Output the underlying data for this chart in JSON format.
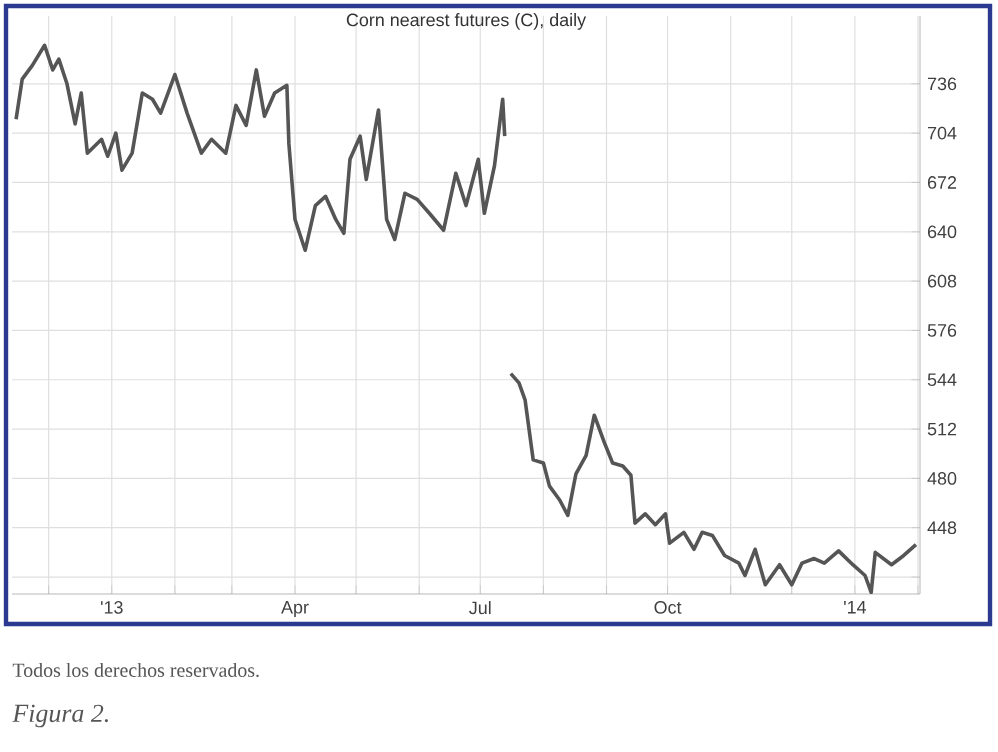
{
  "chart_data": {
    "type": "line",
    "title": "Corn nearest futures (C), daily",
    "x": [
      "2012-11-15",
      "2012-11-18",
      "2012-11-23",
      "2012-11-29",
      "2012-12-03",
      "2012-12-06",
      "2012-12-10",
      "2012-12-14",
      "2012-12-17",
      "2012-12-20",
      "2012-12-27",
      "2012-12-30",
      "2013-01-03",
      "2013-01-06",
      "2013-01-11",
      "2013-01-16",
      "2013-01-21",
      "2013-01-25",
      "2013-02-01",
      "2013-02-07",
      "2013-02-14",
      "2013-02-19",
      "2013-02-26",
      "2013-03-03",
      "2013-03-08",
      "2013-03-13",
      "2013-03-17",
      "2013-03-22",
      "2013-03-28",
      "2013-03-29",
      "2013-04-01",
      "2013-04-06",
      "2013-04-11",
      "2013-04-16",
      "2013-04-21",
      "2013-04-25",
      "2013-04-28",
      "2013-05-03",
      "2013-05-06",
      "2013-05-12",
      "2013-05-16",
      "2013-05-20",
      "2013-05-25",
      "2013-05-31",
      "2013-06-06",
      "2013-06-13",
      "2013-06-19",
      "2013-06-24",
      "2013-06-30",
      "2013-07-03",
      "2013-07-08",
      "2013-07-12",
      "2013-07-13",
      "2013-07-14",
      "2013-07-16",
      "2013-07-20",
      "2013-07-23",
      "2013-07-27",
      "2013-08-01",
      "2013-08-04",
      "2013-08-09",
      "2013-08-13",
      "2013-08-17",
      "2013-08-22",
      "2013-08-26",
      "2013-08-31",
      "2013-09-04",
      "2013-09-09",
      "2013-09-13",
      "2013-09-15",
      "2013-09-20",
      "2013-09-25",
      "2013-09-30",
      "2013-10-02",
      "2013-10-09",
      "2013-10-14",
      "2013-10-18",
      "2013-10-23",
      "2013-10-29",
      "2013-11-05",
      "2013-11-08",
      "2013-11-13",
      "2013-11-18",
      "2013-11-25",
      "2013-12-01",
      "2013-12-06",
      "2013-12-12",
      "2013-12-17",
      "2013-12-24",
      "2013-12-31",
      "2014-01-06",
      "2014-01-09",
      "2014-01-11",
      "2014-01-19",
      "2014-01-25",
      "2014-01-31"
    ],
    "series": [
      {
        "color": "#555555",
        "values": [
          713,
          739,
          748,
          761,
          745,
          752,
          736,
          710,
          730,
          691,
          700,
          689,
          704,
          680,
          691,
          730,
          726,
          717,
          742,
          717,
          691,
          700,
          691,
          722,
          709,
          745,
          715,
          730,
          735,
          697,
          648,
          628,
          657,
          663,
          648,
          639,
          687,
          702,
          674,
          719,
          648,
          635,
          665,
          661,
          652,
          641,
          678,
          657,
          687,
          652,
          683,
          726,
          702,
          null,
          548,
          542,
          531,
          492,
          490,
          475,
          466,
          456,
          483,
          495,
          521,
          503,
          490,
          488,
          482,
          451,
          457,
          450,
          457,
          438,
          445,
          434,
          445,
          443,
          430,
          425,
          417,
          434,
          411,
          424,
          411,
          425,
          428,
          425,
          433,
          424,
          417,
          406,
          432,
          424,
          430,
          437
        ]
      }
    ],
    "xlim": [
      "2012-11-13",
      "2014-02-02"
    ],
    "xticks": [
      {
        "value": "2012-12-01",
        "label": null
      },
      {
        "value": "2013-01-01",
        "label": "'13"
      },
      {
        "value": "2013-02-01",
        "label": null
      },
      {
        "value": "2013-03-01",
        "label": null
      },
      {
        "value": "2013-04-01",
        "label": "Apr"
      },
      {
        "value": "2013-05-01",
        "label": null
      },
      {
        "value": "2013-06-01",
        "label": null
      },
      {
        "value": "2013-07-01",
        "label": "Jul"
      },
      {
        "value": "2013-08-01",
        "label": null
      },
      {
        "value": "2013-09-01",
        "label": null
      },
      {
        "value": "2013-10-01",
        "label": "Oct"
      },
      {
        "value": "2013-11-01",
        "label": null
      },
      {
        "value": "2013-12-01",
        "label": null
      },
      {
        "value": "2014-01-01",
        "label": "'14"
      },
      {
        "value": "2014-02-01",
        "label": null
      }
    ],
    "ylim": [
      405,
      780
    ],
    "yticks": [
      {
        "value": 416,
        "label": null
      },
      448,
      480,
      512,
      544,
      576,
      608,
      640,
      672,
      704,
      736
    ],
    "grid": true,
    "annotations": [
      "Todos los derechos reservados.",
      "Figura 2."
    ]
  }
}
